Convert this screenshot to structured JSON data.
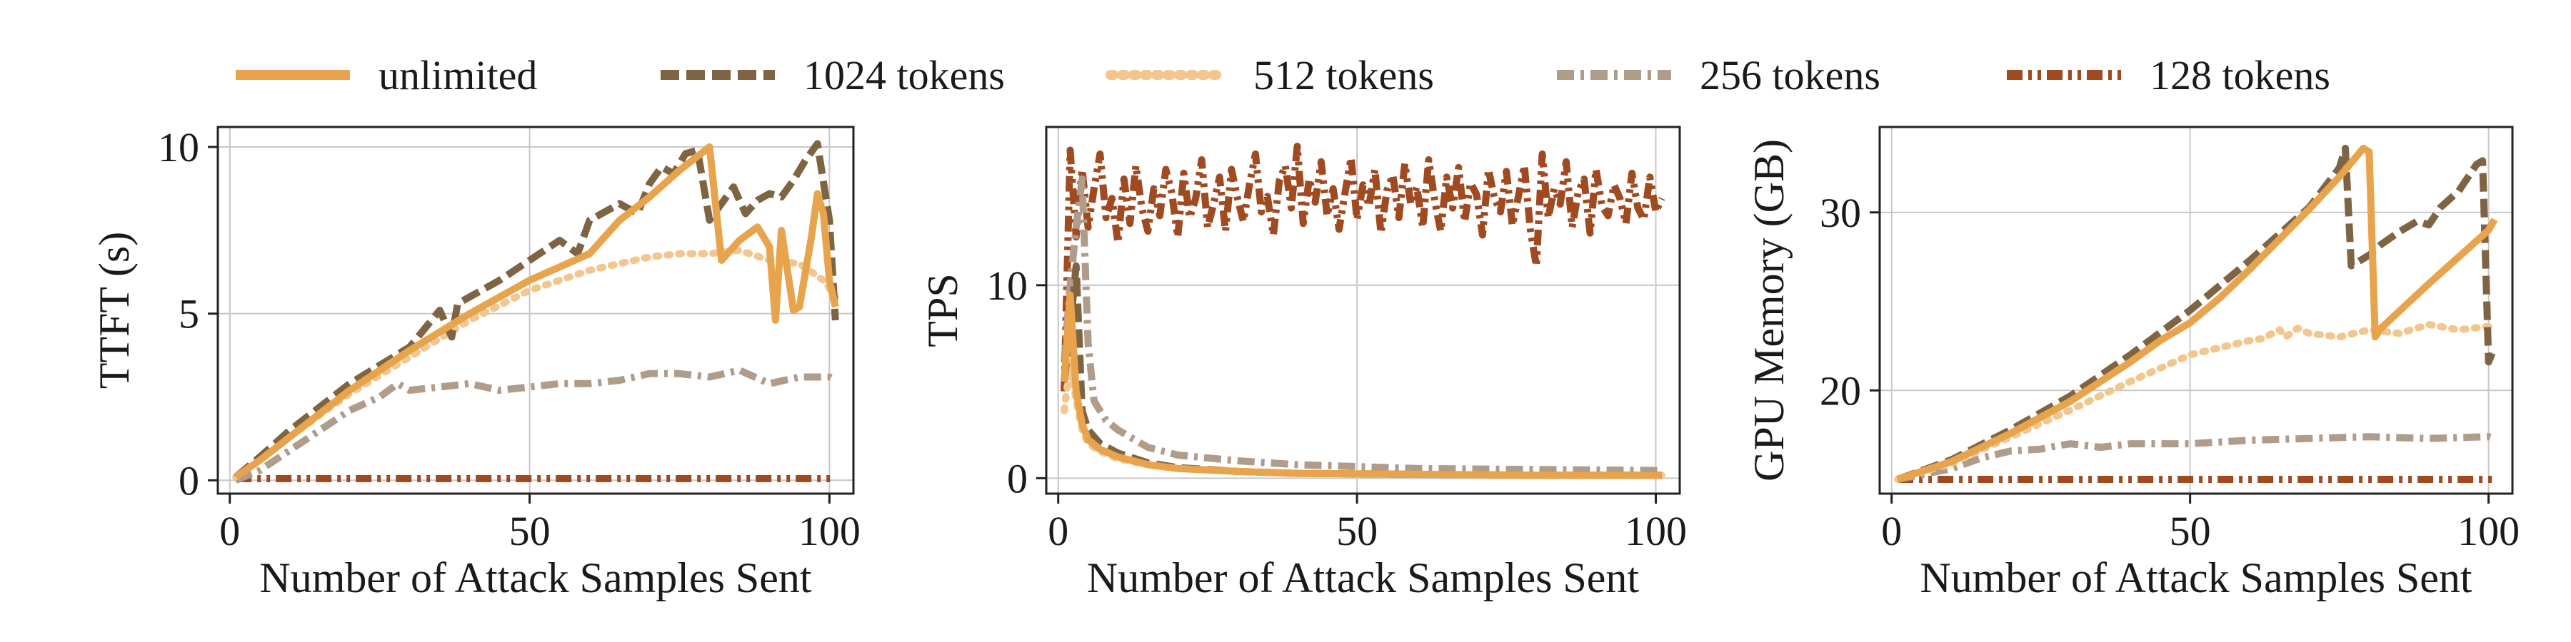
{
  "legend": {
    "items": [
      {
        "label": "unlimited",
        "color": "#E8A44C",
        "dash": "solid"
      },
      {
        "label": "1024 tokens",
        "color": "#7F6443",
        "dash": "dashed"
      },
      {
        "label": "512 tokens",
        "color": "#F2C68E",
        "dash": "dotted"
      },
      {
        "label": "256 tokens",
        "color": "#B09C8A",
        "dash": "dashdot"
      },
      {
        "label": "128 tokens",
        "color": "#A04A22",
        "dash": "dashdotdot"
      }
    ]
  },
  "chart_data": [
    {
      "type": "line",
      "xlabel": "Number of Attack Samples Sent",
      "ylabel": "TTFT (s)",
      "xlim": [
        -2,
        104
      ],
      "ylim": [
        -0.4,
        10.6
      ],
      "xticks": [
        0,
        50,
        100
      ],
      "yticks": [
        0,
        5,
        10
      ],
      "grid": true,
      "series": [
        {
          "name": "unlimited",
          "x": [
            1,
            5,
            10,
            20,
            30,
            40,
            50,
            60,
            65,
            70,
            75,
            80,
            82,
            85,
            88,
            90,
            91,
            92,
            94,
            95,
            97,
            98,
            99,
            100,
            101
          ],
          "y": [
            0.1,
            0.6,
            1.3,
            2.7,
            3.9,
            5.0,
            6.0,
            6.8,
            7.8,
            8.5,
            9.3,
            10.0,
            6.6,
            7.2,
            7.6,
            7.0,
            4.8,
            7.5,
            5.1,
            5.2,
            7.3,
            8.6,
            8.0,
            6.0,
            5.2
          ]
        },
        {
          "name": "1024 tokens",
          "x": [
            1,
            5,
            10,
            20,
            30,
            35,
            37,
            38,
            40,
            45,
            50,
            55,
            58,
            60,
            65,
            68,
            70,
            72,
            74,
            76,
            78,
            80,
            82,
            84,
            86,
            88,
            90,
            92,
            94,
            96,
            98,
            100,
            101
          ],
          "y": [
            0.1,
            0.7,
            1.5,
            2.9,
            4.0,
            5.1,
            4.3,
            5.3,
            5.5,
            6.0,
            6.6,
            7.2,
            6.8,
            7.8,
            8.3,
            8.0,
            8.9,
            9.4,
            9.2,
            9.8,
            9.9,
            7.8,
            8.3,
            8.8,
            8.0,
            8.4,
            8.6,
            8.5,
            9.0,
            9.6,
            10.1,
            7.8,
            4.8
          ]
        },
        {
          "name": "512 tokens",
          "x": [
            1,
            5,
            10,
            20,
            30,
            40,
            50,
            60,
            70,
            75,
            80,
            85,
            90,
            95,
            99,
            101
          ],
          "y": [
            0.1,
            0.6,
            1.3,
            2.6,
            3.7,
            4.8,
            5.7,
            6.3,
            6.7,
            6.8,
            6.8,
            6.9,
            6.6,
            6.5,
            6.0,
            5.5
          ]
        },
        {
          "name": "256 tokens",
          "x": [
            1,
            5,
            10,
            15,
            20,
            25,
            28,
            30,
            35,
            40,
            45,
            50,
            55,
            60,
            65,
            70,
            75,
            80,
            85,
            90,
            95,
            100,
            101
          ],
          "y": [
            0.0,
            0.3,
            0.9,
            1.5,
            2.1,
            2.5,
            2.9,
            2.7,
            2.8,
            2.9,
            2.7,
            2.8,
            2.9,
            2.9,
            3.0,
            3.2,
            3.2,
            3.1,
            3.3,
            2.9,
            3.1,
            3.1,
            3.0
          ]
        },
        {
          "name": "128 tokens",
          "x": [
            1,
            101
          ],
          "y": [
            0.05,
            0.05
          ]
        }
      ]
    },
    {
      "type": "line",
      "xlabel": "Number of Attack Samples Sent",
      "ylabel": "TPS",
      "xlim": [
        -2,
        104
      ],
      "ylim": [
        -0.8,
        18.2
      ],
      "xticks": [
        0,
        50,
        100
      ],
      "yticks": [
        0,
        10
      ],
      "grid": true,
      "series": [
        {
          "name": "unlimited",
          "x": [
            1,
            2,
            3,
            4,
            5,
            7,
            10,
            15,
            20,
            30,
            40,
            60,
            80,
            100,
            101
          ],
          "y": [
            5.0,
            9.5,
            4.5,
            2.8,
            2.0,
            1.5,
            1.1,
            0.7,
            0.5,
            0.35,
            0.25,
            0.2,
            0.15,
            0.15,
            0.15
          ]
        },
        {
          "name": "1024 tokens",
          "x": [
            1,
            2,
            3,
            4,
            5,
            7,
            10,
            15,
            20,
            30,
            40,
            60,
            80,
            100,
            101
          ],
          "y": [
            5.0,
            7.8,
            11.0,
            3.5,
            2.5,
            1.8,
            1.3,
            0.8,
            0.55,
            0.35,
            0.25,
            0.2,
            0.15,
            0.15,
            0.15
          ]
        },
        {
          "name": "512 tokens",
          "x": [
            1,
            2,
            3,
            4,
            5,
            7,
            10,
            15,
            20,
            30,
            40,
            60,
            80,
            100,
            101
          ],
          "y": [
            3.5,
            6.0,
            4.0,
            2.5,
            1.8,
            1.4,
            1.0,
            0.7,
            0.5,
            0.35,
            0.25,
            0.2,
            0.15,
            0.15,
            0.15
          ]
        },
        {
          "name": "256 tokens",
          "x": [
            1,
            2,
            3,
            4,
            5,
            6,
            8,
            10,
            15,
            20,
            30,
            40,
            60,
            80,
            100,
            101
          ],
          "y": [
            6.0,
            10.0,
            13.0,
            15.5,
            7.0,
            4.0,
            3.0,
            2.5,
            1.6,
            1.2,
            0.9,
            0.7,
            0.5,
            0.45,
            0.4,
            0.4
          ]
        },
        {
          "name": "128 tokens",
          "x": [
            1,
            2,
            3,
            4,
            5,
            6,
            7,
            8,
            9,
            10,
            11,
            12,
            13,
            14,
            15,
            16,
            17,
            18,
            19,
            20,
            21,
            22,
            23,
            24,
            25,
            26,
            27,
            28,
            29,
            30,
            31,
            32,
            33,
            34,
            35,
            36,
            37,
            38,
            39,
            40,
            41,
            42,
            43,
            44,
            45,
            46,
            47,
            48,
            49,
            50,
            51,
            52,
            53,
            54,
            55,
            56,
            57,
            58,
            59,
            60,
            61,
            62,
            63,
            64,
            65,
            66,
            67,
            68,
            69,
            70,
            71,
            72,
            73,
            74,
            75,
            76,
            77,
            78,
            79,
            80,
            81,
            82,
            83,
            84,
            85,
            86,
            87,
            88,
            89,
            90,
            91,
            92,
            93,
            94,
            95,
            96,
            97,
            98,
            99,
            100,
            101
          ],
          "y": [
            4.5,
            17.0,
            12.5,
            16.0,
            13.0,
            15.0,
            16.8,
            13.5,
            14.5,
            12.2,
            15.5,
            13.2,
            16.2,
            14.0,
            12.8,
            15.0,
            13.6,
            16.0,
            14.8,
            12.5,
            15.8,
            13.5,
            14.5,
            16.5,
            13.0,
            14.2,
            15.6,
            12.8,
            16.0,
            14.5,
            13.3,
            15.2,
            16.8,
            13.8,
            14.6,
            12.6,
            15.4,
            16.2,
            14.0,
            17.2,
            13.2,
            15.5,
            14.3,
            16.4,
            13.6,
            15.0,
            12.9,
            14.8,
            16.6,
            13.4,
            15.2,
            14.1,
            16.0,
            12.7,
            14.9,
            15.7,
            13.5,
            16.3,
            14.2,
            15.1,
            13.0,
            16.5,
            14.4,
            12.8,
            15.6,
            14.0,
            16.1,
            13.3,
            15.3,
            14.7,
            12.6,
            16.0,
            14.5,
            13.8,
            15.9,
            13.1,
            14.6,
            16.2,
            12.9,
            11.0,
            16.8,
            13.5,
            15.0,
            14.2,
            16.4,
            13.0,
            14.8,
            15.5,
            12.7,
            16.0,
            14.1,
            13.6,
            15.2,
            14.5,
            13.2,
            15.8,
            14.0,
            13.4,
            15.6,
            13.8,
            14.5
          ]
        }
      ]
    },
    {
      "type": "line",
      "xlabel": "Number of Attack Samples Sent",
      "ylabel": "GPU Memory (GB)",
      "xlim": [
        -2,
        104
      ],
      "ylim": [
        14.2,
        34.8
      ],
      "xticks": [
        0,
        50,
        100
      ],
      "yticks": [
        20,
        30
      ],
      "grid": true,
      "series": [
        {
          "name": "unlimited",
          "x": [
            1,
            10,
            20,
            30,
            40,
            45,
            50,
            55,
            60,
            65,
            70,
            75,
            78,
            79,
            80,
            81,
            82,
            90,
            100,
            101
          ],
          "y": [
            15.0,
            16.0,
            17.6,
            19.4,
            21.6,
            22.8,
            23.8,
            25.2,
            26.8,
            28.5,
            30.2,
            32.0,
            33.2,
            33.6,
            33.4,
            23.0,
            23.5,
            26.0,
            29.0,
            29.6
          ]
        },
        {
          "name": "1024 tokens",
          "x": [
            1,
            10,
            20,
            30,
            40,
            50,
            60,
            70,
            75,
            76,
            77,
            80,
            82,
            85,
            88,
            90,
            92,
            95,
            98,
            99,
            100,
            101
          ],
          "y": [
            15.0,
            16.1,
            17.8,
            19.7,
            22.0,
            24.5,
            27.3,
            30.3,
            32.5,
            33.6,
            27.0,
            27.6,
            28.2,
            28.9,
            29.5,
            29.3,
            30.3,
            31.2,
            32.7,
            32.9,
            21.6,
            22.4
          ]
        },
        {
          "name": "512 tokens",
          "x": [
            1,
            10,
            20,
            30,
            40,
            50,
            55,
            60,
            62,
            65,
            66,
            68,
            70,
            75,
            80,
            85,
            90,
            95,
            100,
            101
          ],
          "y": [
            15.0,
            15.9,
            17.4,
            18.9,
            20.5,
            22.0,
            22.4,
            22.8,
            22.9,
            23.4,
            23.0,
            23.5,
            23.2,
            23.0,
            23.4,
            23.2,
            23.7,
            23.4,
            23.6,
            23.3
          ]
        },
        {
          "name": "256 tokens",
          "x": [
            1,
            10,
            15,
            20,
            25,
            28,
            30,
            35,
            40,
            50,
            60,
            70,
            80,
            90,
            100,
            101
          ],
          "y": [
            15.0,
            15.6,
            16.2,
            16.6,
            16.7,
            16.9,
            17.0,
            16.8,
            17.0,
            17.0,
            17.2,
            17.3,
            17.4,
            17.3,
            17.4,
            17.3
          ]
        },
        {
          "name": "128 tokens",
          "x": [
            1,
            101
          ],
          "y": [
            15.0,
            15.0
          ]
        }
      ]
    }
  ]
}
